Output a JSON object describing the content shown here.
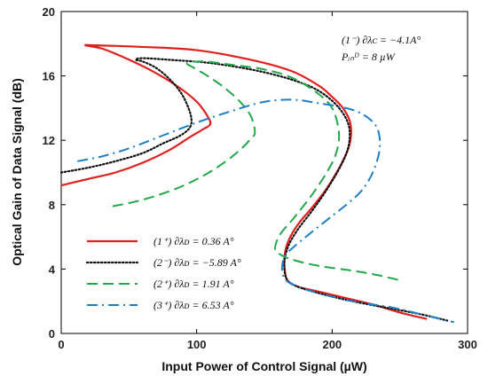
{
  "chart_data": {
    "type": "line",
    "title": "",
    "xlabel": "Input Power of Control Signal (µW)",
    "ylabel": "Optical Gain of Data Signal (dB)",
    "xlim": [
      0,
      300
    ],
    "ylim": [
      0,
      20
    ],
    "xticks": [
      "0",
      "100",
      "200",
      "300"
    ],
    "yticks": [
      "0",
      "4",
      "8",
      "12",
      "16",
      "20"
    ],
    "grid": false,
    "legend_position": "bottom-left",
    "annotation": {
      "line1": "(1⁻)   ∂λᴄ = −4.1A°",
      "line2": "Pᵢₙᴰ = 8 µW"
    },
    "series": [
      {
        "name": "(1⁺)   ∂λᴅ = 0.36 A°",
        "color": "#e0201f",
        "dash": "solid",
        "x": [
          0,
          20,
          40,
          60,
          80,
          95,
          105,
          110,
          108,
          100,
          85,
          65,
          45,
          30,
          18,
          25,
          60,
          100,
          140,
          170,
          190,
          200,
          208,
          213,
          214,
          212,
          206,
          196,
          185,
          175,
          168,
          165,
          165,
          167,
          175,
          190,
          210,
          230,
          250,
          270
        ],
        "y": [
          9.2,
          9.6,
          10.0,
          10.6,
          11.4,
          12.2,
          12.7,
          13.0,
          13.5,
          14.4,
          15.4,
          16.4,
          17.2,
          17.7,
          17.9,
          17.9,
          17.8,
          17.6,
          17.0,
          16.3,
          15.4,
          14.7,
          14.0,
          13.2,
          12.4,
          11.5,
          10.4,
          9.0,
          7.8,
          6.8,
          5.8,
          4.9,
          4.0,
          3.3,
          2.9,
          2.6,
          2.2,
          1.8,
          1.3,
          0.9
        ]
      },
      {
        "name": "(2⁻)   ∂λᴅ = −5.89 A°",
        "color": "#111111",
        "dash": "dotted",
        "x": [
          0,
          20,
          40,
          60,
          75,
          88,
          95,
          96,
          93,
          88,
          80,
          70,
          60,
          55,
          60,
          80,
          110,
          140,
          165,
          185,
          198,
          207,
          212,
          213,
          211,
          205,
          195,
          185,
          175,
          168,
          165,
          165,
          168,
          178,
          195,
          215,
          240,
          265,
          285
        ],
        "y": [
          10.0,
          10.3,
          10.7,
          11.2,
          11.8,
          12.3,
          12.8,
          13.4,
          14.2,
          15.0,
          15.8,
          16.5,
          16.9,
          17.0,
          17.1,
          17.0,
          16.8,
          16.4,
          15.9,
          15.3,
          14.6,
          13.8,
          13.0,
          12.2,
          11.3,
          10.2,
          8.8,
          7.6,
          6.5,
          5.5,
          4.6,
          3.8,
          3.2,
          2.8,
          2.4,
          2.0,
          1.6,
          1.2,
          0.8
        ]
      },
      {
        "name": "(2⁺)   ∂λᴅ = 1.91 A°",
        "color": "#22a84a",
        "dash": "dashed",
        "x": [
          38,
          60,
          85,
          105,
          120,
          132,
          140,
          143,
          140,
          132,
          120,
          108,
          98,
          93,
          105,
          125,
          150,
          170,
          188,
          200,
          205,
          203,
          196,
          185,
          172,
          162,
          158,
          160,
          170,
          190,
          215,
          235,
          250
        ],
        "y": [
          7.9,
          8.3,
          9.0,
          9.8,
          10.6,
          11.4,
          12.1,
          12.5,
          13.5,
          14.4,
          15.3,
          16.0,
          16.5,
          16.8,
          16.9,
          16.7,
          16.4,
          15.9,
          15.0,
          14.0,
          12.5,
          11.2,
          10.0,
          8.6,
          7.2,
          6.2,
          5.4,
          5.0,
          4.6,
          4.2,
          3.9,
          3.6,
          3.3
        ]
      },
      {
        "name": "(3⁺)   ∂λᴅ = 6.53 A°",
        "color": "#1e7fc4",
        "dash": "dashdot",
        "x": [
          12,
          30,
          50,
          75,
          100,
          125,
          145,
          160,
          175,
          190,
          205,
          218,
          228,
          234,
          235,
          230,
          222,
          212,
          200,
          185,
          172,
          165,
          163,
          165,
          172,
          190,
          215,
          245,
          270,
          290
        ],
        "y": [
          10.7,
          11.0,
          11.5,
          12.3,
          13.1,
          13.8,
          14.3,
          14.5,
          14.5,
          14.3,
          14.1,
          13.8,
          13.3,
          12.6,
          11.4,
          10.0,
          8.9,
          8.1,
          7.3,
          6.3,
          5.4,
          4.8,
          4.0,
          3.4,
          3.0,
          2.5,
          2.0,
          1.6,
          1.1,
          0.7
        ]
      }
    ]
  }
}
